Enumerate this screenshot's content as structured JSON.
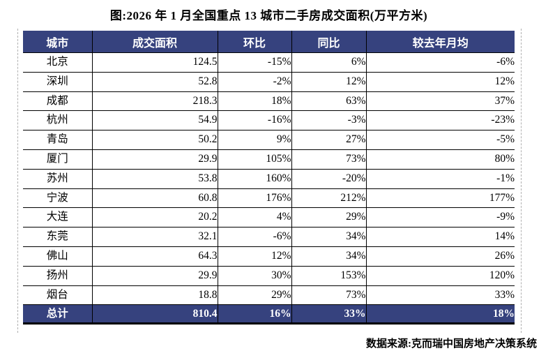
{
  "title": "图:2026 年 1 月全国重点 13 城市二手房成交面积(万平方米)",
  "table": {
    "columns": [
      "城市",
      "成交面积",
      "环比",
      "同比",
      "较去年月均"
    ],
    "rows": [
      {
        "city": "北京",
        "area": "124.5",
        "mom": "-15%",
        "yoy": "6%",
        "avg": "-6%"
      },
      {
        "city": "深圳",
        "area": "52.8",
        "mom": "-2%",
        "yoy": "12%",
        "avg": "12%"
      },
      {
        "city": "成都",
        "area": "218.3",
        "mom": "18%",
        "yoy": "63%",
        "avg": "37%"
      },
      {
        "city": "杭州",
        "area": "54.9",
        "mom": "-16%",
        "yoy": "-3%",
        "avg": "-23%"
      },
      {
        "city": "青岛",
        "area": "50.2",
        "mom": "9%",
        "yoy": "27%",
        "avg": "-5%"
      },
      {
        "city": "厦门",
        "area": "29.9",
        "mom": "105%",
        "yoy": "73%",
        "avg": "80%"
      },
      {
        "city": "苏州",
        "area": "53.8",
        "mom": "160%",
        "yoy": "-20%",
        "avg": "-1%"
      },
      {
        "city": "宁波",
        "area": "60.8",
        "mom": "176%",
        "yoy": "212%",
        "avg": "177%"
      },
      {
        "city": "大连",
        "area": "20.2",
        "mom": "4%",
        "yoy": "29%",
        "avg": "-9%"
      },
      {
        "city": "东莞",
        "area": "32.1",
        "mom": "-6%",
        "yoy": "34%",
        "avg": "14%"
      },
      {
        "city": "佛山",
        "area": "64.3",
        "mom": "12%",
        "yoy": "34%",
        "avg": "26%"
      },
      {
        "city": "扬州",
        "area": "29.9",
        "mom": "30%",
        "yoy": "153%",
        "avg": "120%"
      },
      {
        "city": "烟台",
        "area": "18.8",
        "mom": "29%",
        "yoy": "73%",
        "avg": "33%"
      }
    ],
    "total": {
      "city": "总计",
      "area": "810.4",
      "mom": "16%",
      "yoy": "33%",
      "avg": "18%"
    }
  },
  "footer": {
    "source": "数据来源:克而瑞中国房地产决策系统"
  },
  "colors": {
    "header_bg": "#36427E",
    "total_bg": "#36427E",
    "border": "#000000",
    "page_break_line": "#B0B0B0"
  }
}
